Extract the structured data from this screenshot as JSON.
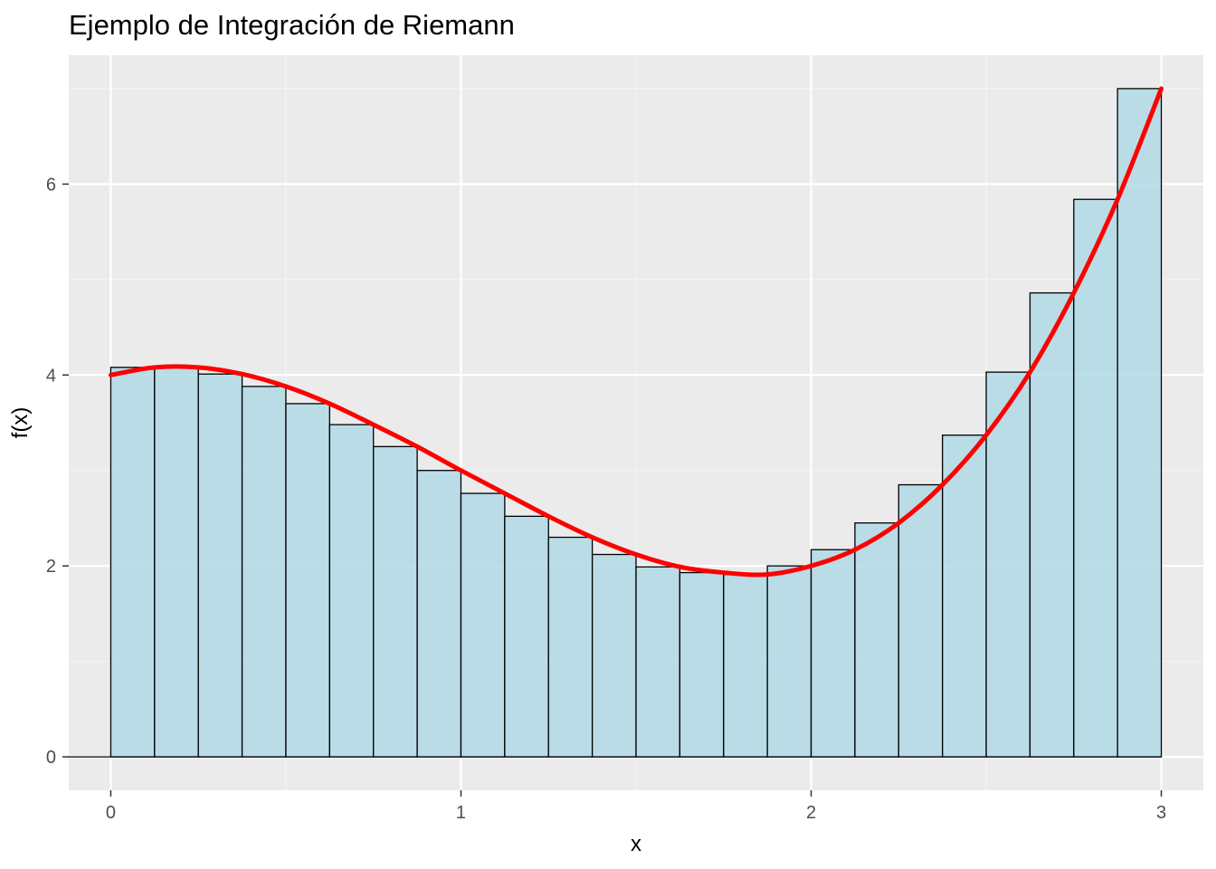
{
  "chart_data": {
    "type": "bar",
    "title": "Ejemplo de Integración de Riemann",
    "xlabel": "x",
    "ylabel": "f(x)",
    "xlim": [
      -0.12,
      3.12
    ],
    "ylim": [
      -0.35,
      7.35
    ],
    "x_ticks": [
      0,
      1,
      2,
      3
    ],
    "y_ticks": [
      0,
      2,
      4,
      6
    ],
    "x_minor_ticks": [
      0.5,
      1.5,
      2.5
    ],
    "y_minor_ticks": [
      1,
      3,
      5,
      7
    ],
    "grid": true,
    "legend": "none",
    "bar_width": 0.125,
    "bars_x": [
      0.125,
      0.25,
      0.375,
      0.5,
      0.625,
      0.75,
      0.875,
      1.0,
      1.125,
      1.25,
      1.375,
      1.5,
      1.625,
      1.75,
      1.875,
      2.0,
      2.125,
      2.25,
      2.375,
      2.5,
      2.625,
      2.75,
      2.875,
      3.0
    ],
    "bars_values": [
      4.08,
      4.08,
      4.01,
      3.88,
      3.7,
      3.48,
      3.25,
      3.0,
      2.76,
      2.52,
      2.3,
      2.12,
      1.99,
      1.93,
      1.91,
      2.0,
      2.17,
      2.45,
      2.85,
      3.37,
      4.03,
      4.86,
      5.84,
      7.0
    ],
    "curve": {
      "x": [
        0,
        0.125,
        0.25,
        0.375,
        0.5,
        0.625,
        0.75,
        0.875,
        1.0,
        1.125,
        1.25,
        1.375,
        1.5,
        1.625,
        1.75,
        1.875,
        2.0,
        2.125,
        2.25,
        2.375,
        2.5,
        2.625,
        2.75,
        2.875,
        3.0
      ],
      "y": [
        4.0,
        4.08,
        4.08,
        4.01,
        3.88,
        3.7,
        3.48,
        3.25,
        3.0,
        2.76,
        2.52,
        2.3,
        2.12,
        1.99,
        1.93,
        1.91,
        2.0,
        2.17,
        2.45,
        2.85,
        3.37,
        4.03,
        4.86,
        5.84,
        7.0
      ]
    },
    "colors": {
      "panel": "#ebebeb",
      "grid_major": "#ffffff",
      "grid_minor": "#f5f5f5",
      "bar_fill": "#add8e6",
      "bar_outline": "#000000",
      "curve": "#ff0000",
      "tick_text": "#4d4d4d"
    }
  }
}
